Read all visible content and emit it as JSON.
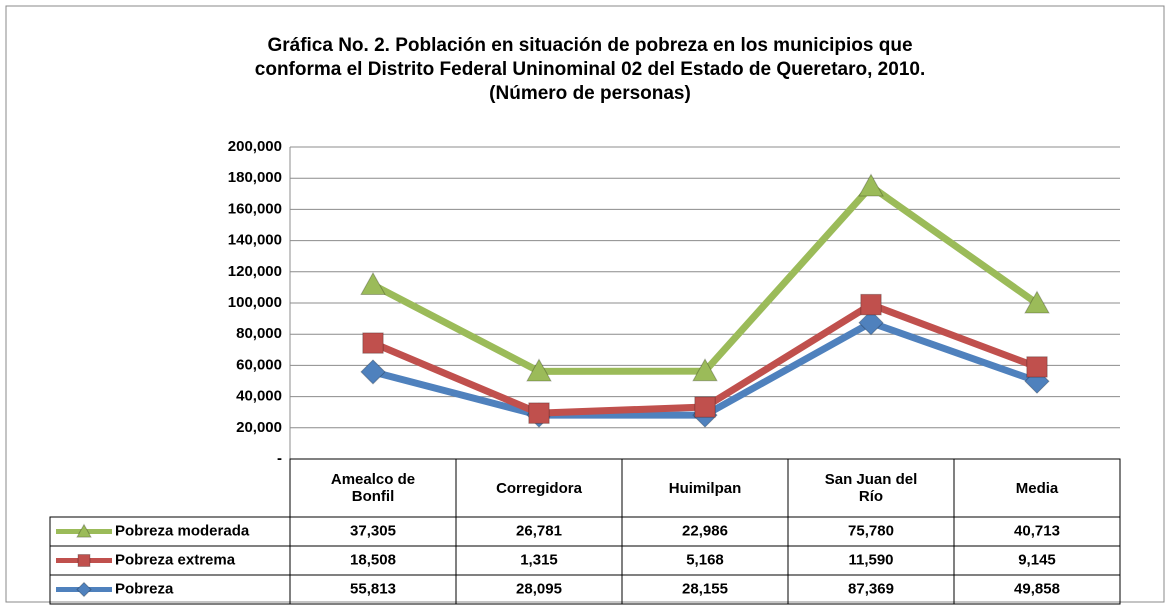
{
  "chart_data": {
    "type": "stacked_line",
    "title": [
      "Gráfica No. 2. Población en situación de pobreza en los municipios que",
      "conforma el Distrito Federal  Uninominal 02 del Estado de Queretaro,  2010.",
      "(Número de personas)"
    ],
    "categories": [
      "Amealco de Bonfil",
      "Corregidora",
      "Huimilpan",
      "San Juan del Río",
      "Media"
    ],
    "series": [
      {
        "name": "Pobreza moderada",
        "color": "#9bbb59",
        "marker": "triangle",
        "values": [
          37305,
          26781,
          22986,
          75780,
          40713
        ],
        "value_labels": [
          "37,305",
          "26,781",
          "22,986",
          "75,780",
          "40,713"
        ]
      },
      {
        "name": "Pobreza extrema",
        "color": "#c0504d",
        "marker": "square",
        "values": [
          18508,
          1315,
          5168,
          11590,
          9145
        ],
        "value_labels": [
          "18,508",
          "1,315",
          "5,168",
          "11,590",
          "9,145"
        ]
      },
      {
        "name": "Pobreza",
        "color": "#4f81bd",
        "marker": "diamond",
        "values": [
          55813,
          28095,
          28155,
          87369,
          49858
        ],
        "value_labels": [
          "55,813",
          "28,095",
          "28,155",
          "87,369",
          "49,858"
        ]
      }
    ],
    "ylim": [
      0,
      200000
    ],
    "yticks": [
      {
        "value": 0,
        "label": "-"
      },
      {
        "value": 20000,
        "label": "20,000"
      },
      {
        "value": 40000,
        "label": "40,000"
      },
      {
        "value": 60000,
        "label": "60,000"
      },
      {
        "value": 80000,
        "label": "80,000"
      },
      {
        "value": 100000,
        "label": "100,000"
      },
      {
        "value": 120000,
        "label": "120,000"
      },
      {
        "value": 140000,
        "label": "140,000"
      },
      {
        "value": 160000,
        "label": "160,000"
      },
      {
        "value": 180000,
        "label": "180,000"
      },
      {
        "value": 200000,
        "label": "200,000"
      }
    ],
    "grid": true
  }
}
